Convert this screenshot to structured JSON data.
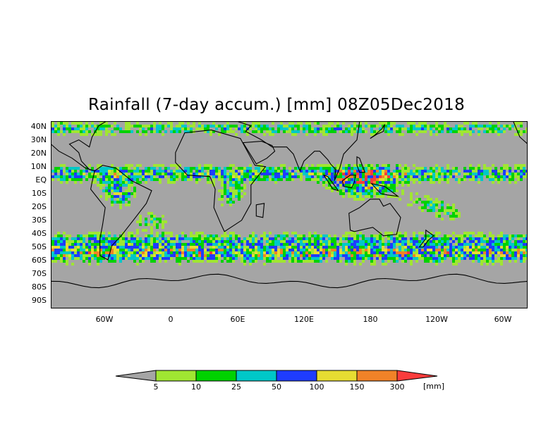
{
  "title": "Rainfall (7-day accum.) [mm] 08Z05Dec2018",
  "lat_labels": [
    "40N",
    "30N",
    "20N",
    "10N",
    "EQ",
    "10S",
    "20S",
    "30S",
    "40S",
    "50S",
    "60S",
    "70S",
    "80S",
    "90S"
  ],
  "lon_labels": [
    "60W",
    "0",
    "60E",
    "120E",
    "180",
    "120W",
    "60W"
  ],
  "colorbar": {
    "colors": [
      "#a5a5a5",
      "#a0e632",
      "#00d200",
      "#00c8c8",
      "#1e3cff",
      "#e6dc32",
      "#f08228",
      "#fa3c3c"
    ],
    "labels": [
      "5",
      "10",
      "25",
      "50",
      "100",
      "150",
      "300"
    ],
    "unit": "[mm]"
  }
}
